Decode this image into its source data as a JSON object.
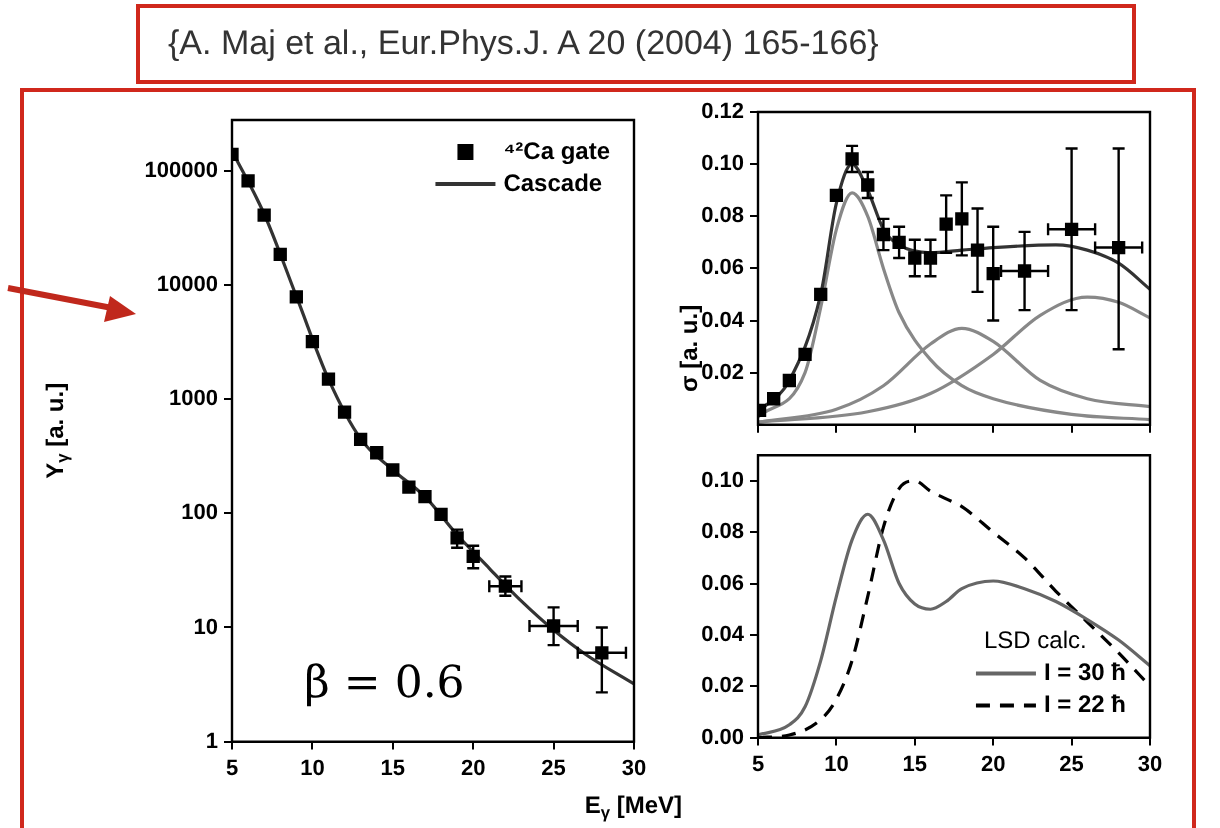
{
  "chart_data": [
    {
      "type": "scatter",
      "title": "{A. Maj et al., Eur.Phys.J. A 20 (2004) 165-166}",
      "xlabel": "E$_{γ}$ [MeV]",
      "ylabel": "Y$_{γ}$ [a. u.]",
      "annotations": [
        "β = 0.6"
      ],
      "log": "y",
      "xlim": [
        5,
        30
      ],
      "xticks": [
        5,
        10,
        15,
        20,
        25,
        30
      ],
      "ylim": [
        1,
        280000
      ],
      "yticks": [
        1,
        10,
        100,
        1000,
        10000,
        100000
      ],
      "legend": "top right",
      "series": [
        {
          "marker": "square",
          "name": "⁴²Ca gate",
          "color": "#000000",
          "x": [
            5,
            6,
            7,
            8,
            9,
            10,
            11,
            12,
            13,
            14,
            15,
            16,
            17,
            18,
            19,
            20,
            22,
            25,
            28
          ],
          "values": [
            140000,
            82000,
            41000,
            18600,
            7900,
            3200,
            1500,
            770,
            445,
            340,
            240,
            170,
            140,
            98,
            61,
            42,
            23,
            10.3,
            6
          ],
          "errors": [
            null,
            null,
            null,
            null,
            null,
            null,
            null,
            null,
            null,
            null,
            null,
            null,
            null,
            null,
            [
              50,
              72
            ],
            [
              33,
              52
            ],
            [
              19,
              28
            ],
            [
              7,
              15
            ],
            [
              2.7,
              10
            ]
          ],
          "xerrors": [
            null,
            null,
            null,
            null,
            null,
            null,
            null,
            null,
            null,
            null,
            null,
            null,
            null,
            null,
            null,
            null,
            1,
            1.5,
            1.5
          ]
        },
        {
          "type": "line",
          "name": "Cascade",
          "color": "#333333",
          "x": [
            5,
            7,
            9,
            11,
            13,
            15,
            17,
            19,
            21,
            23,
            25,
            27,
            30
          ],
          "values": [
            150000,
            42000,
            8000,
            1500,
            450,
            240,
            140,
            65,
            33,
            17,
            9.5,
            5.8,
            3.2
          ]
        }
      ]
    },
    {
      "type": "scatter",
      "ylabel": "σ [a. u.]",
      "xlim": [
        5,
        30
      ],
      "xticks": [
        5,
        10,
        15,
        20,
        25,
        30
      ],
      "ylim": [
        0,
        0.12
      ],
      "yticks": [
        0.02,
        0.04,
        0.06,
        0.08,
        {
          "value": 0.1,
          "label": "0.10"
        },
        0.12
      ],
      "tick_labels": "y",
      "series": [
        {
          "marker": "square",
          "color": "#000000",
          "x": [
            5.1,
            6,
            7,
            8,
            9,
            10,
            11,
            12,
            13,
            14,
            15,
            16,
            17,
            18,
            19,
            20,
            22,
            25,
            28
          ],
          "values": [
            0.0055,
            0.01,
            0.017,
            0.027,
            0.05,
            0.088,
            0.102,
            0.092,
            0.073,
            0.07,
            0.064,
            0.064,
            0.077,
            0.079,
            0.067,
            0.058,
            0.059,
            0.075,
            0.068
          ],
          "errors": [
            null,
            null,
            null,
            null,
            null,
            null,
            0.005,
            0.005,
            0.006,
            0.006,
            0.007,
            0.007,
            0.011,
            0.014,
            0.016,
            0.018,
            0.015,
            [
              0.044,
              0.106
            ],
            [
              0.029,
              0.106
            ]
          ],
          "xerrors": [
            null,
            null,
            null,
            null,
            null,
            null,
            null,
            null,
            null,
            null,
            null,
            null,
            null,
            null,
            null,
            null,
            1.5,
            1.5,
            1.5
          ]
        },
        {
          "type": "line",
          "color": "#333333",
          "x": [
            5,
            7,
            9,
            10,
            11,
            12,
            13,
            14,
            16,
            18,
            20,
            24,
            26,
            28,
            30
          ],
          "values": [
            0.005,
            0.017,
            0.05,
            0.085,
            0.1,
            0.09,
            0.075,
            0.069,
            0.066,
            0.067,
            0.068,
            0.069,
            0.067,
            0.062,
            0.052
          ]
        },
        {
          "type": "line",
          "color": "#888888",
          "x": [
            5,
            8,
            9,
            10,
            11,
            12,
            13,
            14,
            16,
            18,
            20,
            25,
            30
          ],
          "values": [
            0.003,
            0.02,
            0.045,
            0.075,
            0.089,
            0.08,
            0.06,
            0.043,
            0.025,
            0.015,
            0.01,
            0.004,
            0.002
          ]
        },
        {
          "type": "line",
          "color": "#888888",
          "x": [
            5,
            10,
            13,
            16,
            18,
            20,
            23,
            26,
            30
          ],
          "values": [
            0.001,
            0.006,
            0.015,
            0.031,
            0.037,
            0.032,
            0.017,
            0.01,
            0.007
          ]
        },
        {
          "type": "line",
          "color": "#888888",
          "x": [
            5,
            12,
            16,
            20,
            23,
            26,
            28,
            30
          ],
          "values": [
            0.001,
            0.005,
            0.012,
            0.027,
            0.042,
            0.049,
            0.047,
            0.041
          ]
        }
      ]
    },
    {
      "type": "line",
      "legend_title": "LSD calc.",
      "legend": "bottom right",
      "xlim": [
        5,
        30
      ],
      "xticks": [
        5,
        10,
        15,
        20,
        25,
        30
      ],
      "ylim": [
        0,
        0.11
      ],
      "yticks": [
        {
          "value": 0,
          "label": "0.00"
        },
        {
          "value": 0.02,
          "label": "0.02"
        },
        {
          "value": 0.04,
          "label": "0.04"
        },
        {
          "value": 0.06,
          "label": "0.06"
        },
        {
          "value": 0.08,
          "label": "0.08"
        },
        {
          "value": 0.1,
          "label": "0.10"
        }
      ],
      "series": [
        {
          "name": "I = 30 ħ",
          "color": "#666666",
          "line_style": "solid",
          "x": [
            5,
            7,
            8,
            9,
            10,
            11,
            12,
            13,
            14,
            15,
            16,
            17,
            18,
            20,
            22,
            24,
            26,
            28,
            30
          ],
          "values": [
            0.001,
            0.005,
            0.012,
            0.03,
            0.055,
            0.077,
            0.087,
            0.077,
            0.06,
            0.052,
            0.05,
            0.053,
            0.058,
            0.061,
            0.058,
            0.053,
            0.046,
            0.038,
            0.028
          ]
        },
        {
          "name": "I = 22 ħ",
          "color": "#000000",
          "line_style": "dashed",
          "x": [
            5,
            7,
            9,
            10,
            11,
            12,
            13,
            14,
            15,
            16,
            17,
            18,
            20,
            22,
            24,
            26,
            28,
            30
          ],
          "values": [
            0,
            0.001,
            0.007,
            0.015,
            0.03,
            0.055,
            0.082,
            0.097,
            0.1,
            0.096,
            0.093,
            0.09,
            0.08,
            0.07,
            0.057,
            0.045,
            0.033,
            0.02
          ]
        }
      ]
    }
  ]
}
